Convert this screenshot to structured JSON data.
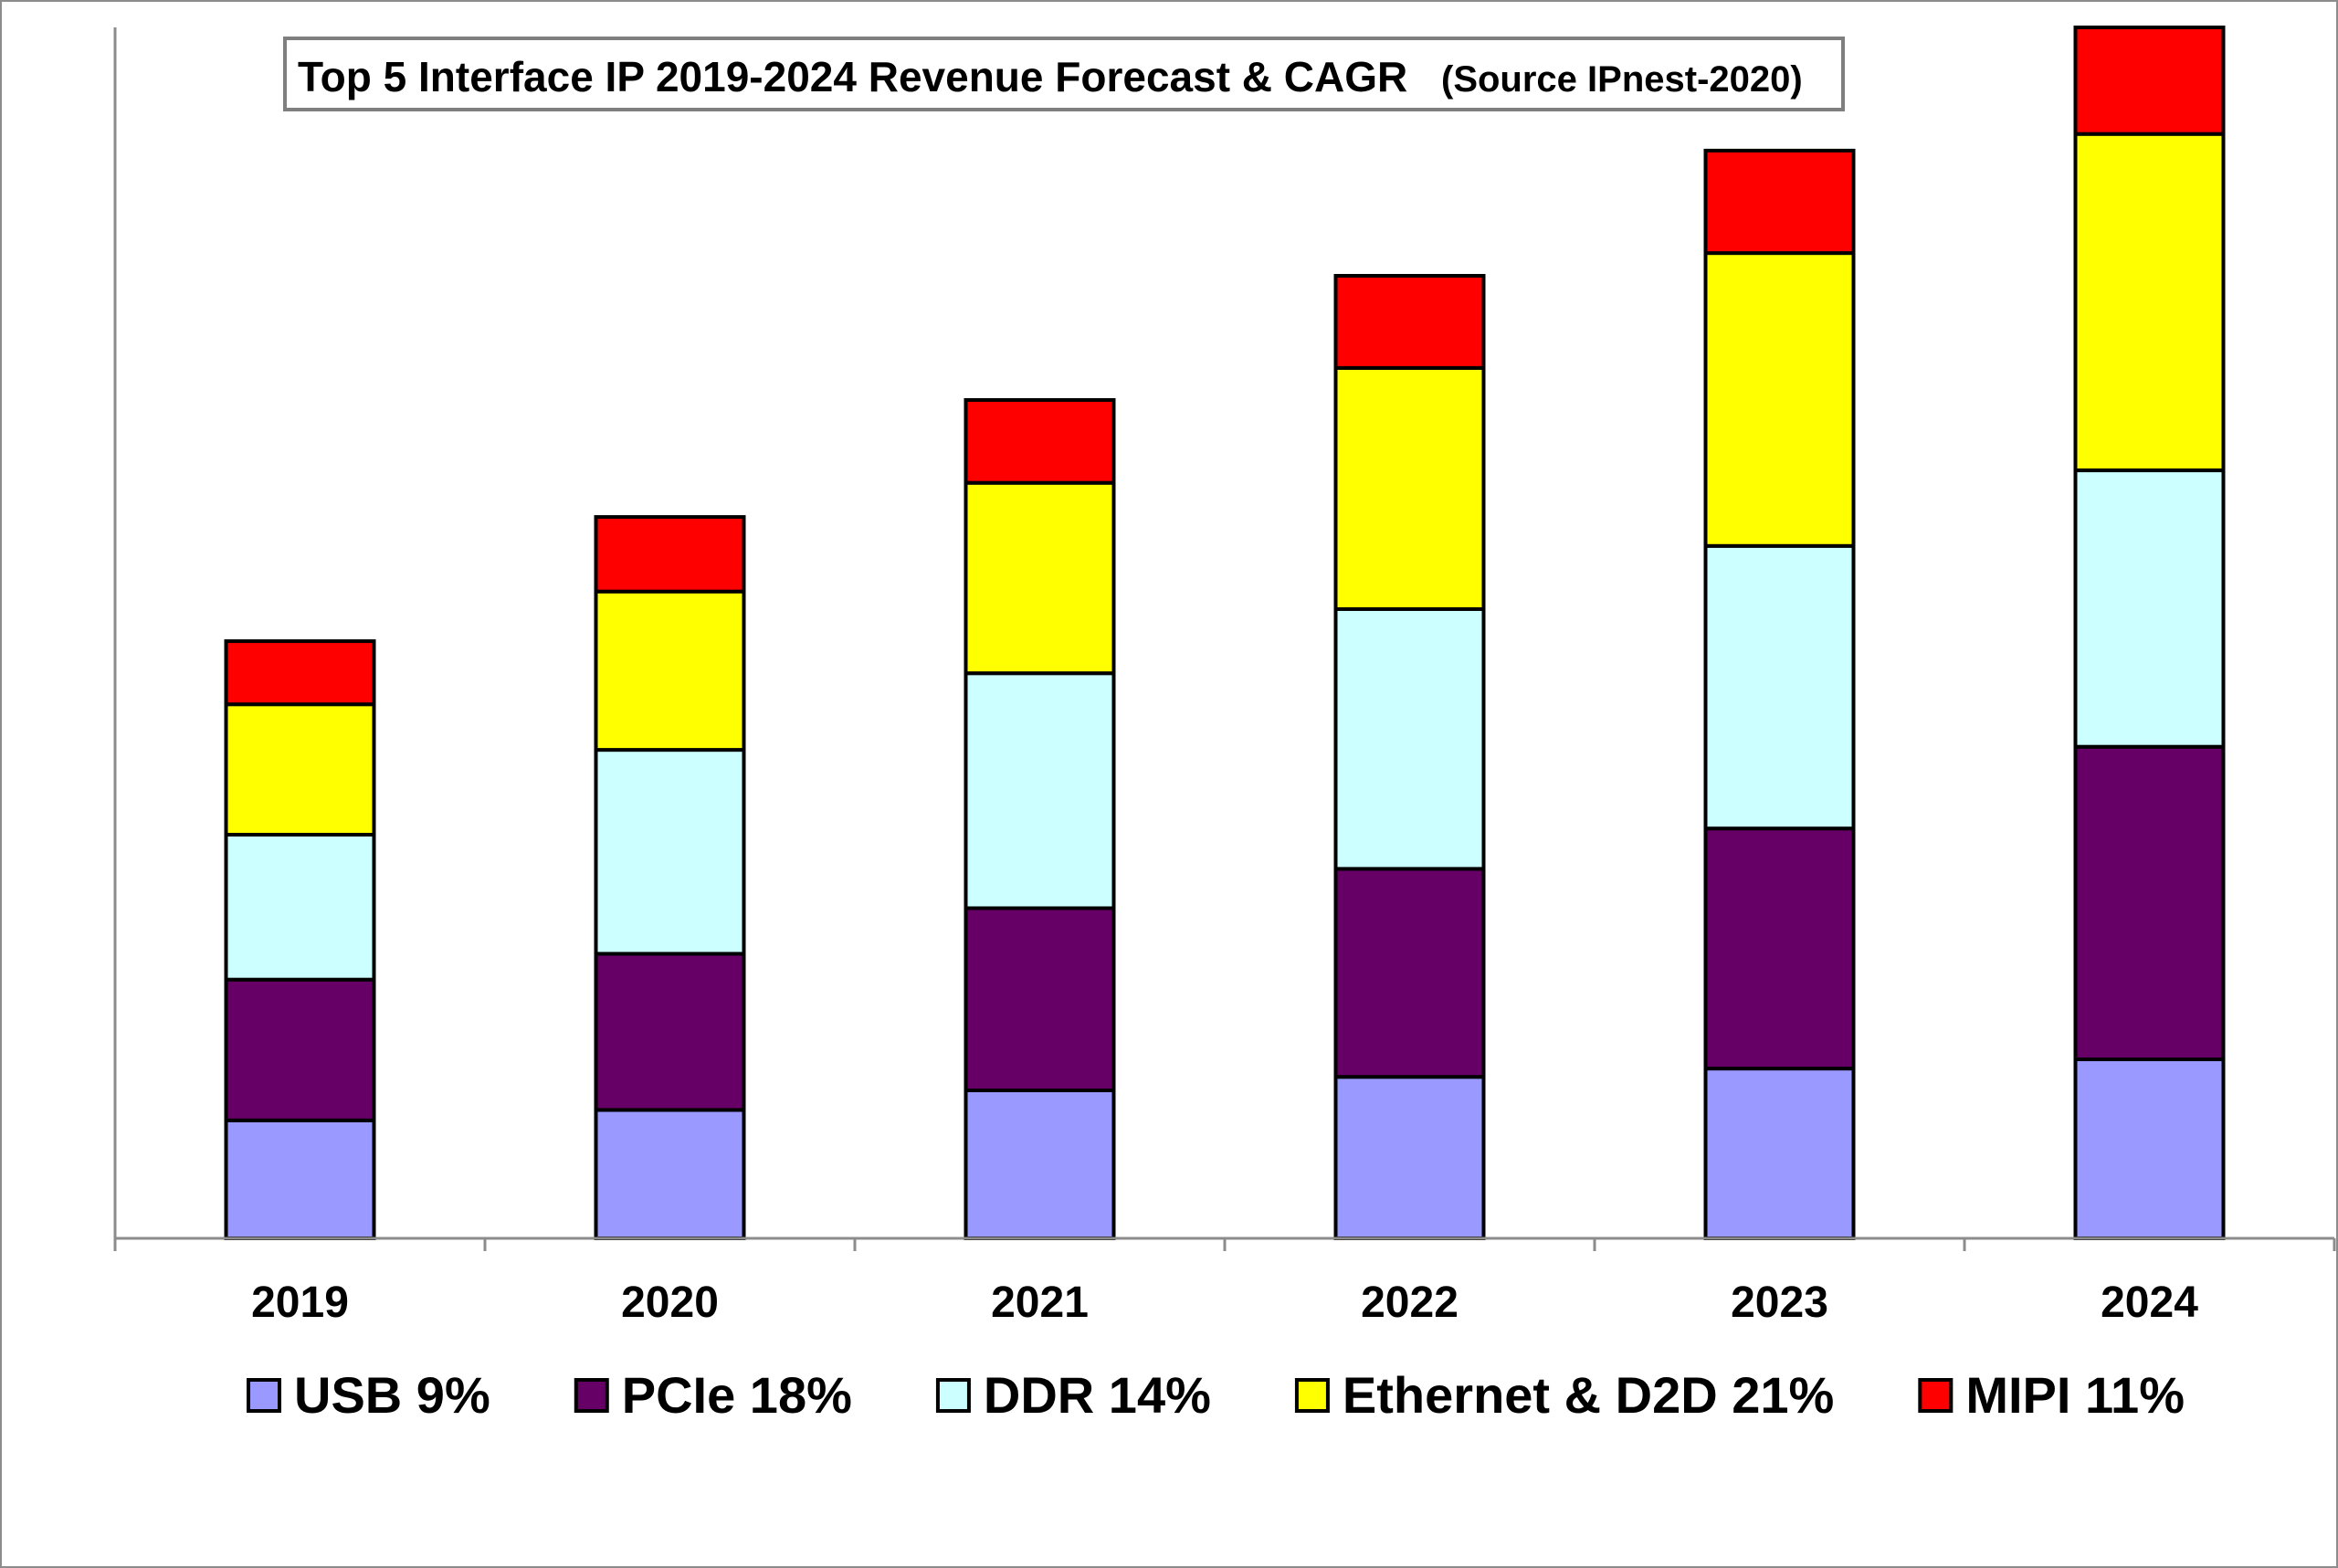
{
  "chart_data": {
    "type": "bar",
    "stacked": true,
    "title": "Top 5 Interface IP 2019-2024 Revenue Forecast & CAGR",
    "subtitle": "(Source IPnest-2020)",
    "categories": [
      "2019",
      "2020",
      "2021",
      "2022",
      "2023",
      "2024"
    ],
    "series": [
      {
        "name": "USB 9%",
        "color": "#9999FF",
        "values": [
          114,
          124,
          143,
          156,
          164,
          173
        ]
      },
      {
        "name": "PCIe 18%",
        "color": "#660066",
        "values": [
          136,
          151,
          176,
          201,
          232,
          302
        ]
      },
      {
        "name": "DDR 14%",
        "color": "#CCFFFF",
        "values": [
          140,
          197,
          227,
          251,
          273,
          267
        ]
      },
      {
        "name": "Ethernet & D2D 21%",
        "color": "#FFFF00",
        "values": [
          126,
          153,
          184,
          233,
          283,
          325
        ]
      },
      {
        "name": "MIPI 11%",
        "color": "#FF0000",
        "values": [
          61,
          72,
          80,
          89,
          99,
          103
        ]
      }
    ],
    "ylim": [
      0,
      1170
    ],
    "grid": false,
    "legend": "bottom"
  }
}
